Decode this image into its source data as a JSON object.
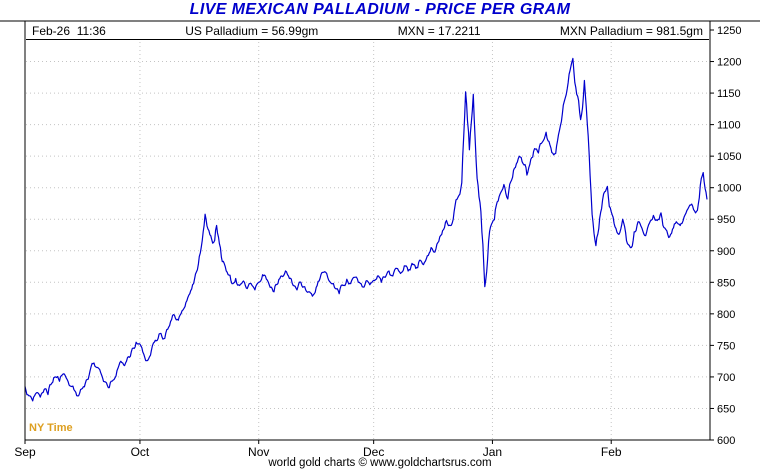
{
  "title": "LIVE MEXICAN PALLADIUM - PRICE PER GRAM",
  "header": {
    "timestamp": "Feb-26  11:36",
    "us_palladium": "US Palladium = 56.99gm",
    "mxn_rate": "MXN = 17.2211",
    "mxn_palladium": "MXN Palladium = 981.5gm"
  },
  "ny_time_label": "NY Time",
  "footer": "world gold charts © www.goldchartsrus.com",
  "colors": {
    "title_blue": "#0000cc",
    "line_blue": "#0000cd",
    "ny_time_orange": "#dd9f20",
    "grid_gray": "#c4c4c4",
    "frame_black": "#000000"
  },
  "chart_data": {
    "type": "line",
    "title": "LIVE MEXICAN PALLADIUM - PRICE PER GRAM",
    "ylim": [
      600,
      1250
    ],
    "y_tick_step": 50,
    "x_tick_labels": [
      "Sep",
      "Oct",
      "Nov",
      "Dec",
      "Jan",
      "Feb"
    ],
    "x_tick_positions": [
      0,
      30,
      61,
      91,
      122,
      153
    ],
    "grid": true,
    "legend_position": "none",
    "series": [
      {
        "name": "MXN Palladium",
        "values": [
          685,
          670,
          662,
          675,
          668,
          680,
          672,
          690,
          700,
          693,
          705,
          696,
          685,
          678,
          670,
          682,
          695,
          710,
          722,
          715,
          703,
          692,
          683,
          695,
          710,
          725,
          718,
          732,
          745,
          755,
          752,
          736,
          726,
          742,
          758,
          768,
          760,
          775,
          788,
          798,
          790,
          805,
          818,
          832,
          848,
          870,
          905,
          958,
          932,
          912,
          940,
          905,
          880,
          862,
          848,
          856,
          845,
          852,
          840,
          848,
          838,
          850,
          862,
          855,
          842,
          835,
          848,
          860,
          868,
          856,
          845,
          838,
          850,
          843,
          835,
          828,
          842,
          856,
          866,
          858,
          848,
          840,
          832,
          845,
          855,
          848,
          858,
          850,
          843,
          852,
          846,
          853,
          860,
          850,
          858,
          868,
          860,
          872,
          864,
          876,
          868,
          880,
          872,
          885,
          878,
          892,
          905,
          898,
          915,
          932,
          948,
          940,
          962,
          985,
          1008,
          1152,
          1060,
          1148,
          1015,
          962,
          843,
          915,
          945,
          972,
          990,
          1005,
          982,
          1012,
          1032,
          1050,
          1038,
          1020,
          1045,
          1062,
          1055,
          1072,
          1088,
          1068,
          1052,
          1075,
          1105,
          1142,
          1180,
          1205,
          1148,
          1108,
          1170,
          1082,
          958,
          908,
          952,
          990,
          1002,
          962,
          938,
          926,
          950,
          916,
          905,
          930,
          946,
          936,
          924,
          944,
          956,
          948,
          960,
          936,
          921,
          934,
          946,
          940,
          953,
          966,
          974,
          960,
          984,
          1024,
          981.5
        ]
      }
    ]
  }
}
